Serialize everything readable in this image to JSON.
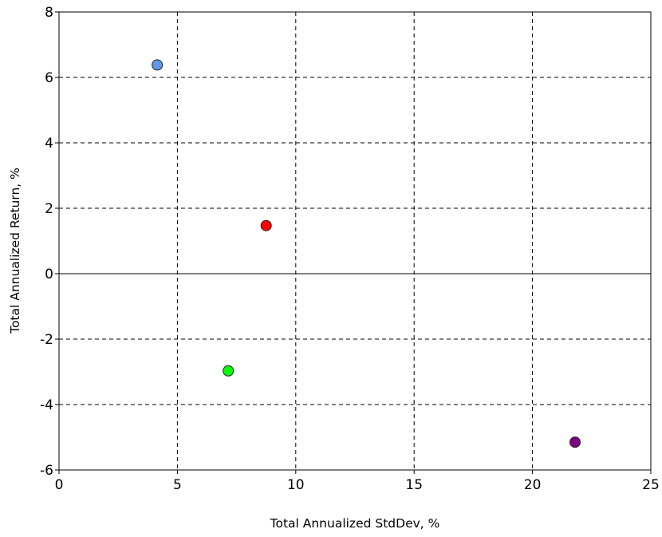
{
  "chart_data": {
    "type": "scatter",
    "title": "",
    "xlabel": "Total Annualized StdDev, %",
    "ylabel": "Total Annualized Return, %",
    "xlim": [
      0,
      25
    ],
    "ylim": [
      -6,
      8
    ],
    "xticks": [
      0,
      5,
      10,
      15,
      20,
      25
    ],
    "yticks": [
      -6,
      -4,
      -2,
      0,
      2,
      4,
      6,
      8
    ],
    "x_tick_labels": [
      "0",
      "5",
      "10",
      "15",
      "20",
      "25"
    ],
    "y_tick_labels": [
      "-6",
      "-4",
      "-2",
      "0",
      "2",
      "4",
      "6",
      "8"
    ],
    "grid": true,
    "grid_style": "dashed",
    "zero_line": true,
    "legend": "none",
    "points": [
      {
        "x": 4.15,
        "y": 6.38,
        "color": "#6495ed"
      },
      {
        "x": 8.75,
        "y": 1.47,
        "color": "#ff0000"
      },
      {
        "x": 7.15,
        "y": -2.97,
        "color": "#00ff00"
      },
      {
        "x": 21.8,
        "y": -5.15,
        "color": "#800080"
      }
    ]
  }
}
